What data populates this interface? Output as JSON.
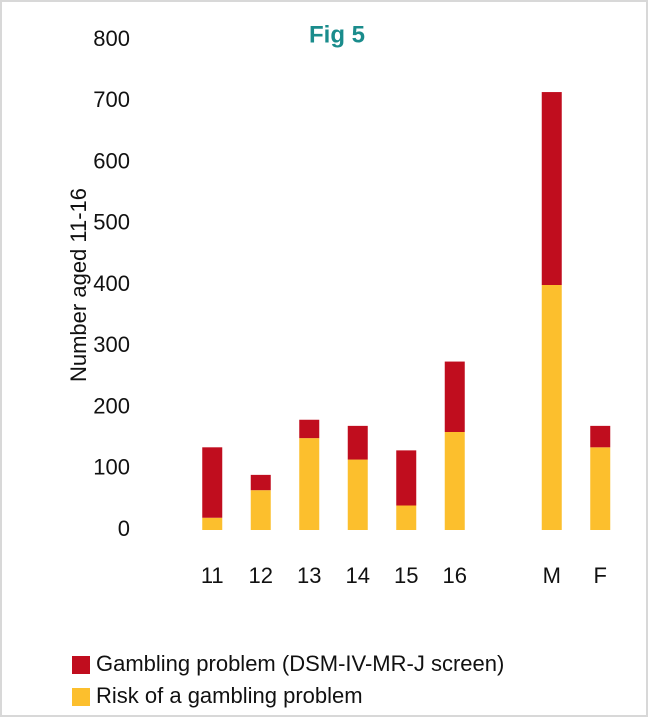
{
  "chart_data": {
    "type": "stacked_bar",
    "title": "Fig 5",
    "y_label": "Number aged 11-16",
    "categories": [
      "11",
      "12",
      "13",
      "14",
      "15",
      "16",
      null,
      "M",
      "F"
    ],
    "series": [
      {
        "name": "Risk of a gambling problem",
        "color": "#fcbf2d",
        "values": [
          20,
          65,
          150,
          115,
          40,
          160,
          null,
          400,
          135
        ]
      },
      {
        "name": "Gambling problem (DSM-IV-MR-J screen)",
        "color": "#c00d1e",
        "values": [
          115,
          25,
          30,
          55,
          90,
          115,
          null,
          315,
          35
        ]
      }
    ],
    "ylim": [
      0,
      800
    ],
    "yticks": [
      0,
      100,
      200,
      300,
      400,
      500,
      600,
      700,
      800
    ],
    "grid": false
  }
}
